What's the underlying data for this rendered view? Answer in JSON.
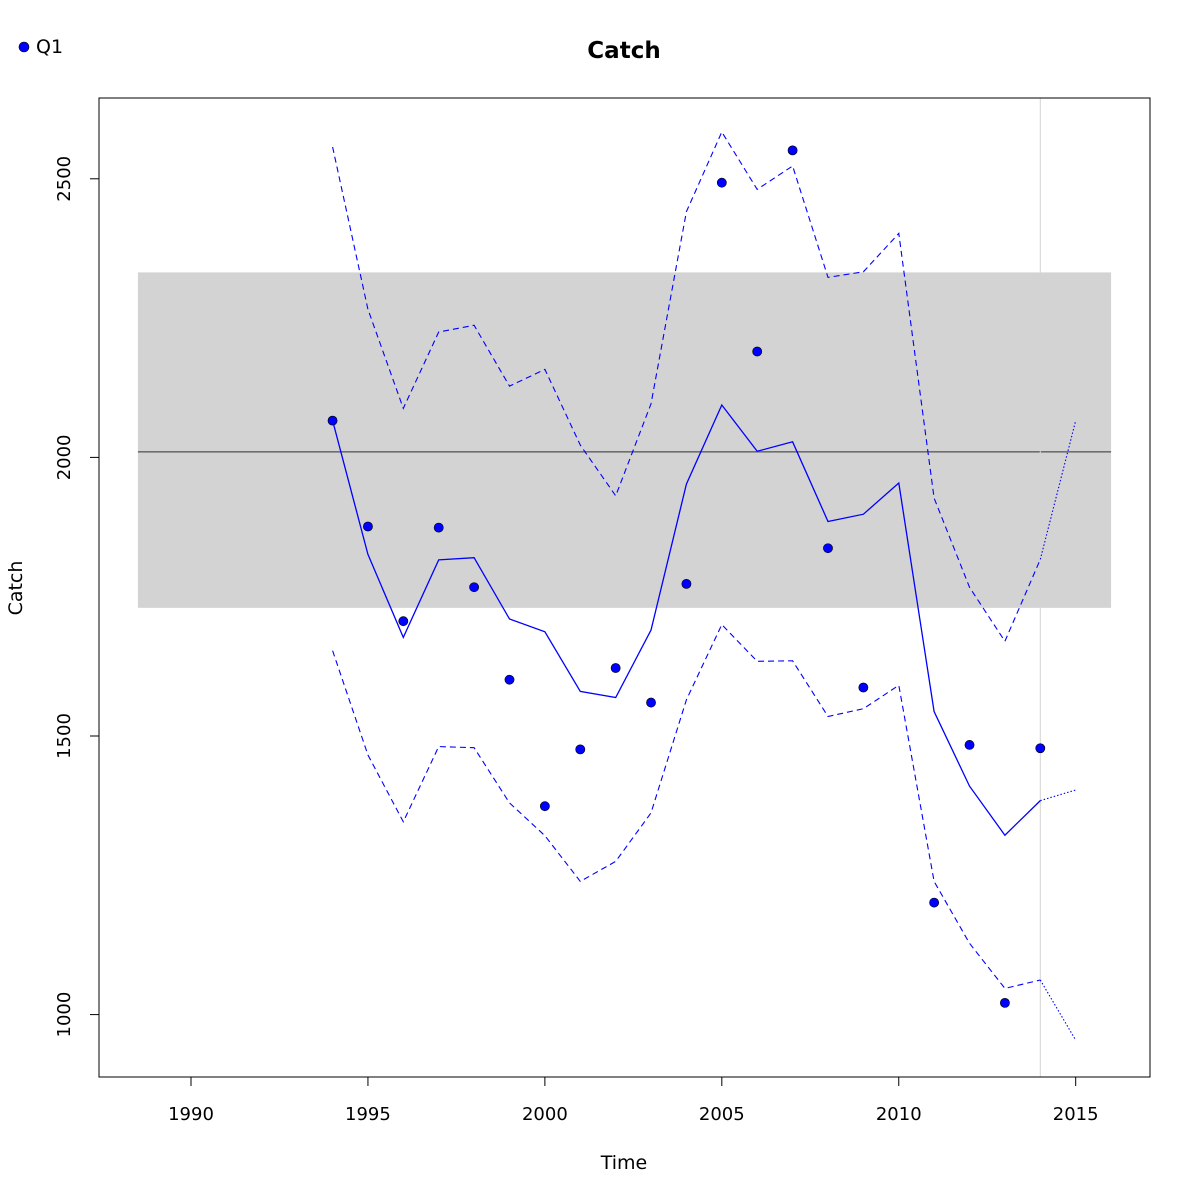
{
  "chart_data": {
    "type": "line",
    "title": "Catch",
    "xlabel": "Time",
    "ylabel": "Catch",
    "xlim": [
      1987.4,
      2017.1
    ],
    "ylim": [
      888,
      2645
    ],
    "x_ticks": [
      1990,
      1995,
      2000,
      2005,
      2010,
      2015
    ],
    "y_ticks": [
      1000,
      1500,
      2000,
      2500
    ],
    "legend": {
      "position": "top-left",
      "entries": [
        {
          "label": "Q1",
          "color": "#0000ff",
          "marker": "filled-circle"
        }
      ]
    },
    "reference": {
      "mean": 2010,
      "band_low": 1730,
      "band_high": 2332,
      "band_x": [
        1988.5,
        2016
      ],
      "band_color": "#d3d3d3",
      "line_color": "#6e6e6e"
    },
    "vertical_line": {
      "x": 2014,
      "color": "#d3d3d3"
    },
    "series": [
      {
        "name": "Q1",
        "role": "observed",
        "style": "points",
        "color": "#0000ff",
        "x": [
          1994,
          1995,
          1996,
          1997,
          1998,
          1999,
          2000,
          2001,
          2002,
          2003,
          2004,
          2005,
          2006,
          2007,
          2008,
          2009,
          2010,
          2011,
          2012,
          2013,
          2014
        ],
        "values": [
          2066,
          1876,
          1706,
          1874,
          1767,
          1601,
          1374,
          1476,
          1622,
          1560,
          1773,
          2493,
          2190,
          2551,
          1837,
          1587,
          null,
          1201,
          1484,
          1021,
          1478
        ]
      },
      {
        "role": "fitted",
        "style": "solid",
        "color": "#0000ff",
        "x": [
          1994,
          1995,
          1996,
          1997,
          1998,
          1999,
          2000,
          2001,
          2002,
          2003,
          2004,
          2005,
          2006,
          2007,
          2008,
          2009,
          2010,
          2011,
          2012,
          2013,
          2014
        ],
        "values": [
          2066,
          1826,
          1677,
          1816,
          1820,
          1710,
          1687,
          1580,
          1569,
          1690,
          1952,
          2094,
          2011,
          2028,
          1885,
          1898,
          1954,
          1544,
          1410,
          1322,
          1384
        ]
      },
      {
        "role": "upper",
        "style": "dashed",
        "color": "#0000ff",
        "x": [
          1994,
          1995,
          1996,
          1997,
          1998,
          1999,
          2000,
          2001,
          2002,
          2003,
          2004,
          2005,
          2006,
          2007,
          2008,
          2009,
          2010,
          2011,
          2012,
          2013,
          2014
        ],
        "values": [
          2557,
          2266,
          2088,
          2225,
          2237,
          2128,
          2158,
          2022,
          1931,
          2096,
          2441,
          2584,
          2481,
          2523,
          2323,
          2333,
          2402,
          1927,
          1767,
          1670,
          1817
        ]
      },
      {
        "role": "lower",
        "style": "dashed",
        "color": "#0000ff",
        "x": [
          1994,
          1995,
          1996,
          1997,
          1998,
          1999,
          2000,
          2001,
          2002,
          2003,
          2004,
          2005,
          2006,
          2007,
          2008,
          2009,
          2010,
          2011,
          2012,
          2013,
          2014
        ],
        "values": [
          1653,
          1466,
          1346,
          1481,
          1479,
          1380,
          1321,
          1239,
          1275,
          1362,
          1565,
          1700,
          1634,
          1635,
          1535,
          1549,
          1591,
          1239,
          1128,
          1047,
          1062
        ]
      },
      {
        "role": "forecast-mean",
        "style": "dotted",
        "color": "#0000ff",
        "x": [
          2014,
          2015
        ],
        "values": [
          1384,
          1403
        ]
      },
      {
        "role": "forecast-upper",
        "style": "dotted",
        "color": "#0000ff",
        "x": [
          2014,
          2015
        ],
        "values": [
          1817,
          2066
        ]
      },
      {
        "role": "forecast-lower",
        "style": "dotted",
        "color": "#0000ff",
        "x": [
          2014,
          2015
        ],
        "values": [
          1062,
          954
        ]
      }
    ]
  }
}
